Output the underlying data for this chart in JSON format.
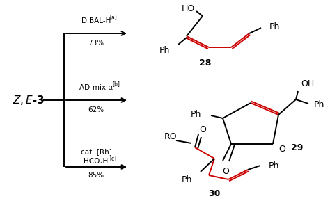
{
  "bg_color": "#ffffff",
  "text_color": "#000000",
  "red_color": "#cc0000",
  "reagent1": "DIBAL-H",
  "reagent1_sup": "[a]",
  "yield1": "73%",
  "reagent2": "AD-mix α",
  "reagent2_sup": "[b]",
  "yield2": "62%",
  "reagent3_line1": "cat. [Rh]",
  "reagent3_line2": "HCO₂H",
  "reagent3_sup": "[c]",
  "yield3": "85%",
  "compound_label1": "28",
  "compound_label2": "29",
  "compound_label3": "30",
  "starting_material": "Z,E-3",
  "fig_width": 4.74,
  "fig_height": 2.89,
  "dpi": 100
}
